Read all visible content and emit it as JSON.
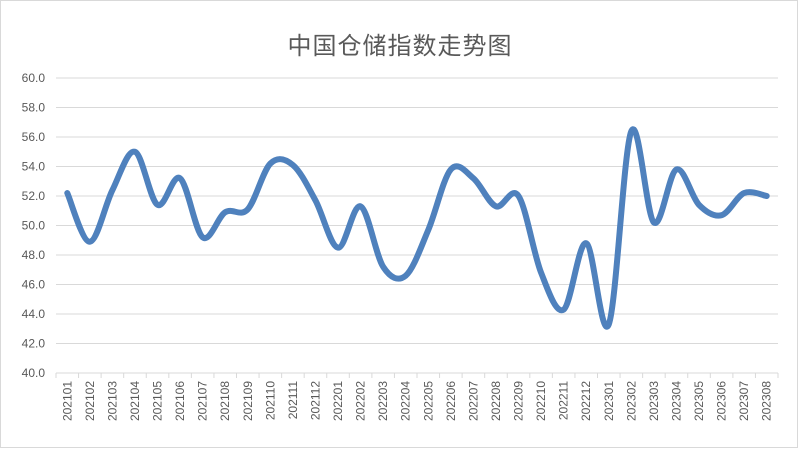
{
  "chart_data": {
    "type": "line",
    "title": "中国仓储指数走势图",
    "xlabel": "",
    "ylabel": "",
    "ylim": [
      40,
      60
    ],
    "yticks": [
      "40.0",
      "42.0",
      "44.0",
      "46.0",
      "48.0",
      "50.0",
      "52.0",
      "54.0",
      "56.0",
      "58.0",
      "60.0"
    ],
    "grid": true,
    "smooth": true,
    "color": "#4f81bd",
    "categories": [
      "202101",
      "202102",
      "202103",
      "202104",
      "202105",
      "202106",
      "202107",
      "202108",
      "202109",
      "202110",
      "202111",
      "202112",
      "202201",
      "202202",
      "202203",
      "202204",
      "202205",
      "202206",
      "202207",
      "202208",
      "202209",
      "202210",
      "202211",
      "202212",
      "202301",
      "202302",
      "202303",
      "202304",
      "202305",
      "202306",
      "202307",
      "202308"
    ],
    "series": [
      {
        "values": [
          52.2,
          48.9,
          52.4,
          55.0,
          51.4,
          53.2,
          49.2,
          50.9,
          51.1,
          54.2,
          54.1,
          51.7,
          48.5,
          51.3,
          47.2,
          46.6,
          49.7,
          53.8,
          53.2,
          51.3,
          52.0,
          46.8,
          44.3,
          48.8,
          43.3,
          56.4,
          50.2,
          53.8,
          51.4,
          50.7,
          52.2,
          52.0
        ]
      }
    ]
  }
}
